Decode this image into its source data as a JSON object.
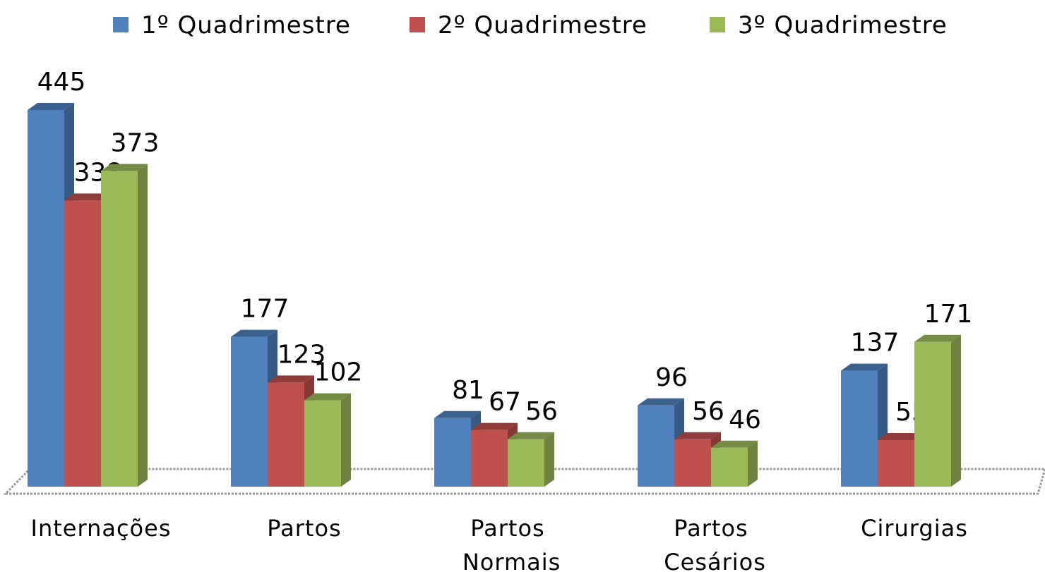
{
  "chart_data": {
    "type": "bar3d",
    "categories": [
      "Internações",
      "Partos",
      "Partos Normais",
      "Partos Cesários",
      "Cirurgias"
    ],
    "series": [
      {
        "name": "1º Quadrimestre",
        "color": "#4f81bd",
        "values": [
          445,
          177,
          81,
          96,
          137
        ]
      },
      {
        "name": "2º Quadrimestre",
        "color": "#c0504d",
        "values": [
          338,
          123,
          67,
          56,
          55
        ]
      },
      {
        "name": "3º Quadrimestre",
        "color": "#9bbb59",
        "values": [
          373,
          102,
          56,
          46,
          171
        ]
      }
    ],
    "ylim": [
      0,
      500
    ],
    "legend": "top"
  }
}
